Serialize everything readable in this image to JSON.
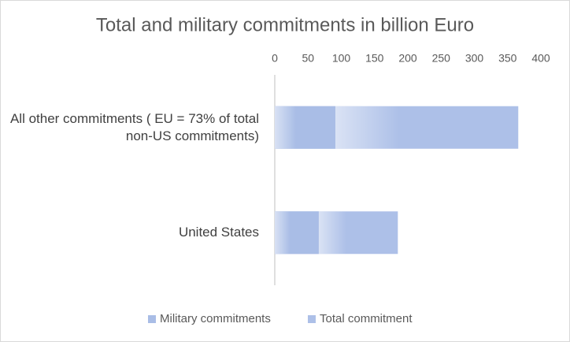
{
  "chart_data": {
    "type": "bar",
    "orientation": "horizontal",
    "overlap": true,
    "title": "Total and military commitments in billion Euro",
    "categories": [
      "All other commitments ( EU = 73% of total non-US commitments)",
      "United States"
    ],
    "series": [
      {
        "name": "Military commitments",
        "color": "#a9bde6",
        "values": [
          91,
          66
        ]
      },
      {
        "name": "Total commitment",
        "color": "#adc0e8",
        "values": [
          366,
          185
        ]
      }
    ],
    "xlim": [
      0,
      400
    ],
    "xticks": [
      0,
      50,
      100,
      150,
      200,
      250,
      300,
      350,
      400
    ],
    "legend": "bottom",
    "grid": false
  }
}
